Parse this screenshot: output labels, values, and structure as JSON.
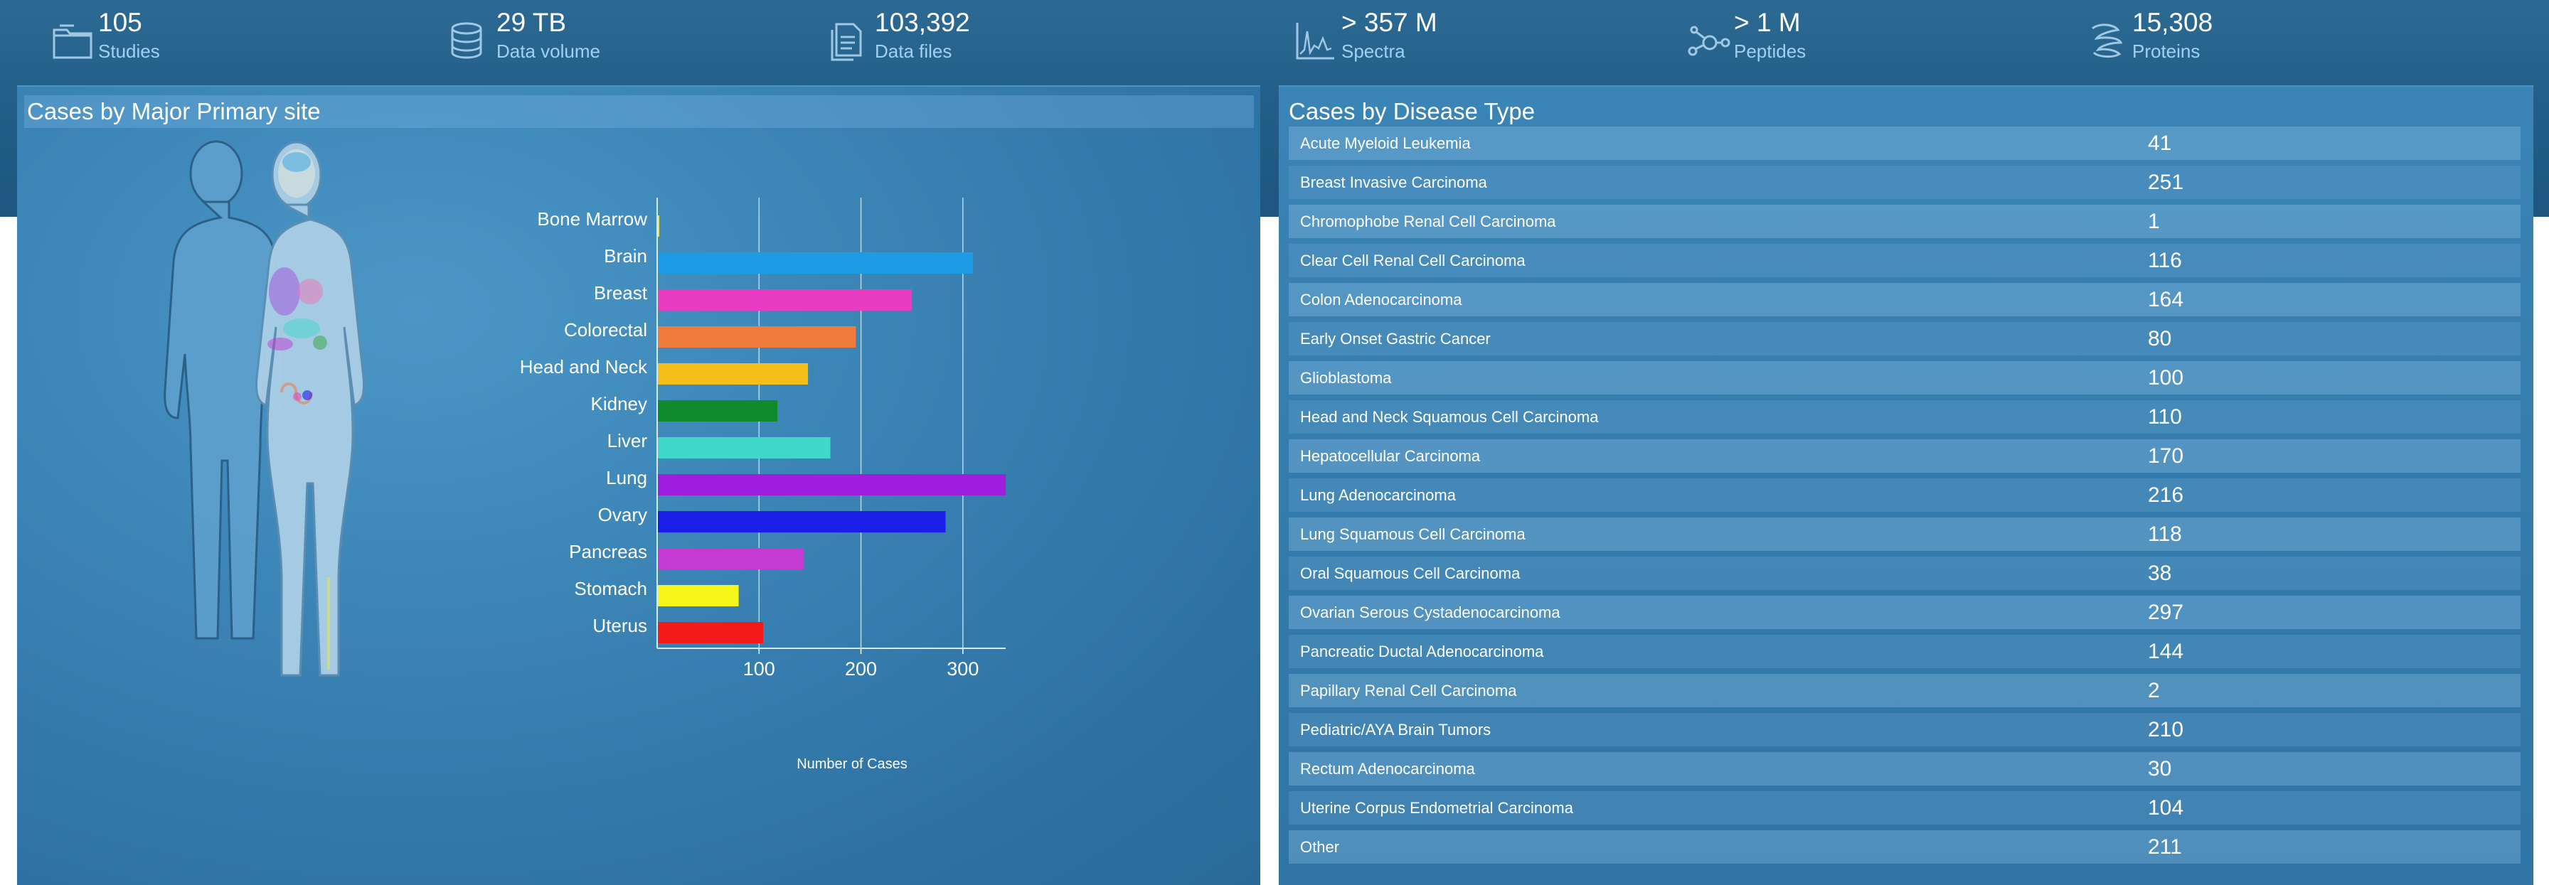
{
  "stats": [
    {
      "value": "105",
      "label": "Studies",
      "icon": "folder-icon"
    },
    {
      "value": "29 TB",
      "label": "Data volume",
      "icon": "database-icon"
    },
    {
      "value": "103,392",
      "label": "Data files",
      "icon": "files-icon"
    },
    {
      "value": "> 357 M",
      "label": "Spectra",
      "icon": "spectrum-chart-icon"
    },
    {
      "value": "> 1 M",
      "label": "Peptides",
      "icon": "peptide-molecule-icon"
    },
    {
      "value": "15,308",
      "label": "Proteins",
      "icon": "protein-icon"
    }
  ],
  "left_panel": {
    "title": "Cases by Major Primary site"
  },
  "right_panel": {
    "title": "Cases by Disease Type"
  },
  "chart_data": {
    "type": "bar",
    "orientation": "horizontal",
    "categories": [
      "Bone Marrow",
      "Brain",
      "Breast",
      "Colorectal",
      "Head and Neck",
      "Kidney",
      "Liver",
      "Lung",
      "Ovary",
      "Pancreas",
      "Stomach",
      "Uterus"
    ],
    "values": [
      2,
      310,
      250,
      195,
      148,
      118,
      170,
      342,
      283,
      144,
      80,
      104
    ],
    "colors": [
      "#e8e84a",
      "#1d9ce5",
      "#e83cc3",
      "#f07b3c",
      "#f5be1a",
      "#0f8a2c",
      "#3fd8c9",
      "#9e1ee0",
      "#1a1ee8",
      "#c43ad2",
      "#f5f51a",
      "#f51a1a"
    ],
    "xlabel": "Number of Cases",
    "ylabel": "",
    "xlim": [
      0,
      342
    ],
    "xticks": [
      100,
      200,
      300
    ],
    "grid": true
  },
  "disease_types": [
    {
      "name": "Acute Myeloid Leukemia",
      "count": "41"
    },
    {
      "name": "Breast Invasive Carcinoma",
      "count": "251"
    },
    {
      "name": "Chromophobe Renal Cell Carcinoma",
      "count": "1"
    },
    {
      "name": "Clear Cell Renal Cell Carcinoma",
      "count": "116"
    },
    {
      "name": "Colon Adenocarcinoma",
      "count": "164"
    },
    {
      "name": "Early Onset Gastric Cancer",
      "count": "80"
    },
    {
      "name": "Glioblastoma",
      "count": "100"
    },
    {
      "name": "Head and Neck Squamous Cell Carcinoma",
      "count": "110"
    },
    {
      "name": "Hepatocellular Carcinoma",
      "count": "170"
    },
    {
      "name": "Lung Adenocarcinoma",
      "count": "216"
    },
    {
      "name": "Lung Squamous Cell Carcinoma",
      "count": "118"
    },
    {
      "name": "Oral Squamous Cell Carcinoma",
      "count": "38"
    },
    {
      "name": "Ovarian Serous Cystadenocarcinoma",
      "count": "297"
    },
    {
      "name": "Pancreatic Ductal Adenocarcinoma",
      "count": "144"
    },
    {
      "name": "Papillary Renal Cell Carcinoma",
      "count": "2"
    },
    {
      "name": "Pediatric/AYA Brain Tumors",
      "count": "210"
    },
    {
      "name": "Rectum Adenocarcinoma",
      "count": "30"
    },
    {
      "name": "Uterine Corpus Endometrial Carcinoma",
      "count": "104"
    },
    {
      "name": "Other",
      "count": "211"
    }
  ]
}
